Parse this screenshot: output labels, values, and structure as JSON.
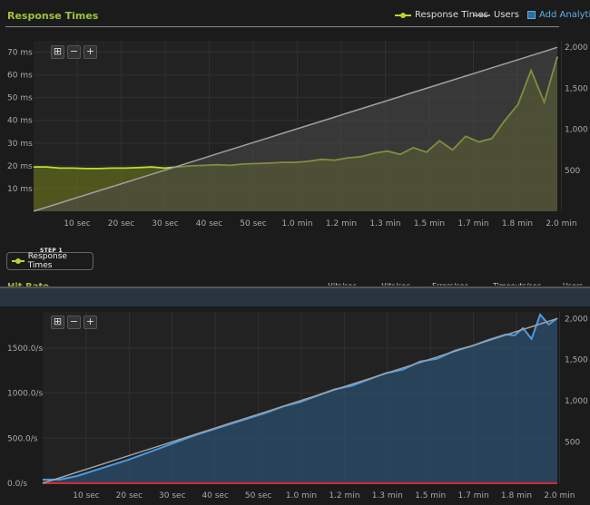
{
  "chart1": {
    "title": "Response Times",
    "legend": [
      {
        "name": "Response Times",
        "color": "#b8d430",
        "marker": "dot"
      },
      {
        "name": "Users",
        "color": "#9a9a9a",
        "marker": "line"
      }
    ],
    "add_analytics": "Add Analytics",
    "y_left_ticks": [
      "10 ms",
      "20 ms",
      "30 ms",
      "40 ms",
      "50 ms",
      "60 ms",
      "70 ms"
    ],
    "y_left_values": [
      10,
      20,
      30,
      40,
      50,
      60,
      70
    ],
    "y_right_ticks": [
      "500",
      "1,000",
      "1,500",
      "2,000"
    ],
    "y_right_values": [
      500,
      1000,
      1500,
      2000
    ],
    "x_ticks": [
      "10 sec",
      "20 sec",
      "30 sec",
      "40 sec",
      "50 sec",
      "1.0 min",
      "1.2 min",
      "1.3 min",
      "1.5 min",
      "1.7 min",
      "1.8 min",
      "2.0 min"
    ]
  },
  "step": {
    "label": "STEP 1",
    "button": "Response Times"
  },
  "chart2": {
    "title": "Hit Rate",
    "legend": [
      {
        "name": "Hits/sec",
        "color": "#b8d430"
      },
      {
        "name": "Hits/sec",
        "color": "#4a9be0"
      },
      {
        "name": "Errors/sec",
        "color": "#d8263a"
      },
      {
        "name": "Timeouts/sec",
        "color": "#e07a30"
      },
      {
        "name": "Users",
        "color": "#9a9a9a"
      }
    ],
    "y_left_ticks": [
      "0.0/s",
      "500.0/s",
      "1000.0/s",
      "1500.0/s"
    ],
    "y_left_values": [
      0,
      500,
      1000,
      1500
    ],
    "y_right_ticks": [
      "500",
      "1,000",
      "1,500",
      "2,000"
    ],
    "y_right_values": [
      500,
      1000,
      1500,
      2000
    ],
    "x_ticks": [
      "10 sec",
      "20 sec",
      "30 sec",
      "40 sec",
      "50 sec",
      "1.0 min",
      "1.2 min",
      "1.3 min",
      "1.5 min",
      "1.7 min",
      "1.8 min",
      "2.0 min"
    ]
  },
  "chart_data": [
    {
      "type": "line",
      "title": "Response Times",
      "x_unit": "seconds",
      "x": [
        0,
        3,
        6,
        9,
        12,
        15,
        18,
        21,
        24,
        27,
        30,
        33,
        36,
        39,
        42,
        45,
        48,
        51,
        54,
        57,
        60,
        63,
        66,
        69,
        72,
        75,
        78,
        81,
        84,
        87,
        90,
        93,
        96,
        99,
        102,
        105,
        108,
        111,
        114,
        117,
        120
      ],
      "series": [
        {
          "name": "Response Times",
          "axis": "left",
          "values": [
            19.5,
            19.5,
            19.0,
            19.0,
            18.8,
            18.8,
            19.0,
            19.0,
            19.2,
            19.5,
            19.0,
            19.5,
            20.0,
            20.2,
            20.5,
            20.2,
            20.8,
            21.0,
            21.2,
            21.5,
            21.5,
            22.0,
            22.8,
            22.5,
            23.5,
            24.0,
            25.5,
            26.5,
            25.0,
            28.0,
            26.0,
            31.0,
            27.0,
            33.0,
            30.5,
            32.0,
            40.0,
            47.0,
            62.0,
            48.0,
            68.0
          ]
        },
        {
          "name": "Users",
          "axis": "right",
          "values": [
            0,
            50,
            100,
            150,
            200,
            250,
            300,
            350,
            400,
            450,
            500,
            550,
            600,
            650,
            700,
            750,
            800,
            850,
            900,
            950,
            1000,
            1050,
            1100,
            1150,
            1200,
            1250,
            1300,
            1350,
            1400,
            1450,
            1500,
            1550,
            1600,
            1650,
            1700,
            1750,
            1800,
            1850,
            1900,
            1950,
            2000
          ]
        }
      ],
      "y_left_range": [
        0,
        75
      ],
      "y_right_range": [
        0,
        2080
      ],
      "grid": true
    },
    {
      "type": "line",
      "title": "Hit Rate",
      "x_unit": "seconds",
      "x": [
        0,
        4,
        8,
        12,
        16,
        20,
        24,
        28,
        32,
        36,
        40,
        44,
        48,
        52,
        56,
        60,
        64,
        68,
        72,
        76,
        80,
        84,
        88,
        92,
        96,
        100,
        104,
        108,
        110,
        112,
        114,
        116,
        118,
        120
      ],
      "series": [
        {
          "name": "Hits/sec",
          "axis": "left",
          "values": [
            40,
            40,
            80,
            140,
            200,
            260,
            330,
            400,
            470,
            540,
            600,
            660,
            720,
            780,
            850,
            900,
            970,
            1040,
            1080,
            1150,
            1220,
            1260,
            1350,
            1380,
            1470,
            1520,
            1590,
            1650,
            1640,
            1720,
            1600,
            1870,
            1760,
            1830
          ]
        },
        {
          "name": "Errors/sec",
          "axis": "left",
          "values": [
            0,
            0,
            0,
            0,
            0,
            0,
            0,
            0,
            0,
            0,
            0,
            0,
            0,
            0,
            0,
            0,
            0,
            0,
            0,
            0,
            0,
            0,
            0,
            0,
            0,
            0,
            0,
            0,
            0,
            0,
            0,
            0,
            0,
            0
          ]
        },
        {
          "name": "Users",
          "axis": "right",
          "values": [
            0,
            66,
            133,
            200,
            266,
            333,
            400,
            466,
            533,
            600,
            666,
            733,
            800,
            866,
            933,
            1000,
            1066,
            1133,
            1200,
            1266,
            1333,
            1400,
            1466,
            1533,
            1600,
            1666,
            1733,
            1800,
            1833,
            1866,
            1900,
            1933,
            1966,
            2000
          ]
        }
      ],
      "y_left_range": [
        0,
        1900
      ],
      "y_right_range": [
        0,
        2080
      ],
      "grid": true
    }
  ]
}
